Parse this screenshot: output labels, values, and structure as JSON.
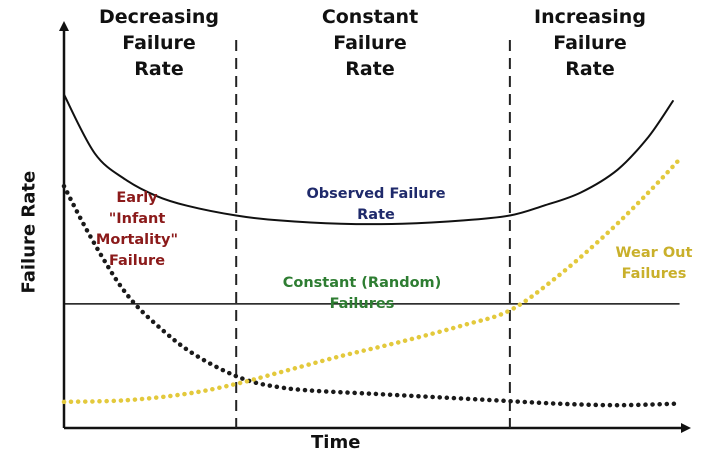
{
  "chart_data": {
    "type": "line",
    "xlabel": "Time",
    "ylabel": "Failure Rate",
    "xlim": [
      0,
      100
    ],
    "ylim": [
      0,
      100
    ],
    "regions": [
      {
        "label": "Decreasing\nFailure\nRate",
        "x_start": 0,
        "x_end": 28
      },
      {
        "label": "Constant\nFailure\nRate",
        "x_start": 28,
        "x_end": 72.5
      },
      {
        "label": "Increasing\nFailure\nRate",
        "x_start": 72.5,
        "x_end": 100
      }
    ],
    "boundaries": [
      28,
      72.5
    ],
    "series": [
      {
        "name": "Observed Failure\nRate",
        "style": "solid",
        "color": "#111111",
        "label_color": "#1f2a6b",
        "x": [
          0,
          5,
          10,
          15,
          20,
          28,
          35,
          45,
          55,
          65,
          72.5,
          78,
          84,
          90,
          95,
          99
        ],
        "y": [
          98,
          80,
          72,
          67,
          64,
          61,
          59.5,
          58.5,
          58.5,
          59.5,
          61,
          64,
          68,
          75,
          85,
          96
        ]
      },
      {
        "name": "Early\n\"Infant\nMortality\"\nFailure",
        "style": "dotted",
        "color": "#1a1a1a",
        "label_color": "#8b1a1a",
        "x": [
          0,
          3,
          6,
          9,
          12,
          16,
          20,
          25,
          30,
          35,
          40,
          50,
          60,
          70,
          80,
          90,
          100
        ],
        "y": [
          70,
          59,
          49,
          40,
          33,
          26,
          20,
          14.5,
          10.5,
          8.5,
          7.5,
          6.5,
          5.5,
          4.5,
          3.5,
          3,
          3.5
        ]
      },
      {
        "name": "Constant (Random)\nFailures",
        "style": "solid-thin",
        "color": "#111111",
        "label_color": "#2e7d32",
        "x": [
          0,
          100
        ],
        "y": [
          34,
          34
        ]
      },
      {
        "name": "Wear Out\nFailures",
        "style": "dotted",
        "color": "#e3c93c",
        "label_color": "#c9b02b",
        "x": [
          0,
          10,
          20,
          28,
          35,
          45,
          55,
          65,
          72.5,
          80,
          88,
          95,
          100
        ],
        "y": [
          4,
          4.5,
          6.5,
          9.5,
          13,
          18,
          22.5,
          27.5,
          32,
          42,
          55,
          68,
          78
        ]
      }
    ]
  }
}
